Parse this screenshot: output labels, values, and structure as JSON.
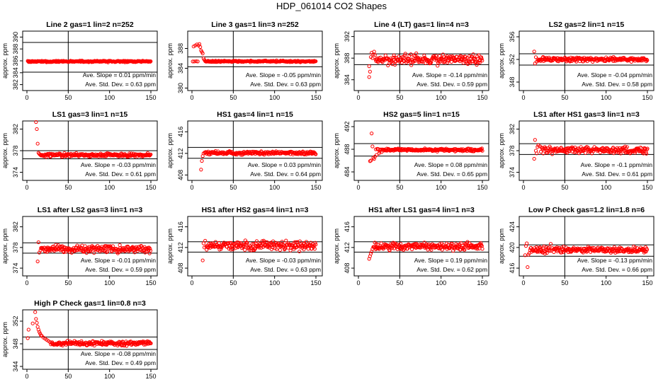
{
  "figure": {
    "title": "HDP_061014  CO2 Shapes",
    "point_color": "#ff0000",
    "axis_color": "#000000"
  },
  "chart_data": [
    {
      "type": "scatter",
      "title": "Line 2 gas=1 lin=2 n=252",
      "ylabel": "approx. ppm",
      "xlim": [
        0,
        150
      ],
      "ylim": [
        381,
        391
      ],
      "xticks": [
        0,
        50,
        100,
        150
      ],
      "yticks": [
        382,
        384,
        386,
        388,
        390
      ],
      "hlines": [
        389.1,
        384.1
      ],
      "vline": 50,
      "shape": {
        "start": 1,
        "base": 385.9,
        "noise": 0.06,
        "jump": 0
      },
      "annotations": [
        "Ave. Slope = 0.01 ppm/min",
        "Ave. Std. Dev. = 0.63 ppm"
      ]
    },
    {
      "type": "scatter",
      "title": "Line 3 gas=1 lin=3 n=252",
      "ylabel": "approx. ppm",
      "xlim": [
        0,
        150
      ],
      "ylim": [
        379.5,
        391.5
      ],
      "xticks": [
        0,
        50,
        100,
        150
      ],
      "yticks": [
        380,
        384,
        388
      ],
      "hlines": [
        386.3,
        384.3
      ],
      "vline": 50,
      "shape": {
        "start": 1,
        "base": 385.4,
        "noise": 0.07,
        "jump": 0,
        "early": [
          [
            2,
            388.4
          ],
          [
            4,
            388.6
          ],
          [
            6,
            388.8
          ],
          [
            8,
            388.6
          ],
          [
            9,
            388.9
          ],
          [
            10,
            388.3
          ],
          [
            11,
            387.6
          ],
          [
            12,
            387.3
          ],
          [
            13,
            387.0
          ],
          [
            14,
            386.0
          ],
          [
            15,
            385.7
          ]
        ]
      },
      "annotations": [
        "Ave. Slope = -0.05 ppm/min",
        "Ave. Std. Dev. = 0.63 ppm"
      ]
    },
    {
      "type": "scatter",
      "title": "Line 4 (LT) gas=1 lin=4 n=3",
      "ylabel": "approx. ppm",
      "xlim": [
        0,
        150
      ],
      "ylim": [
        382,
        393
      ],
      "xticks": [
        0,
        50,
        100,
        150
      ],
      "yticks": [
        384,
        388,
        392
      ],
      "hlines": [
        388.8,
        386.8
      ],
      "vline": 50,
      "shape": {
        "start": 13,
        "base": 387.8,
        "noise": 0.45,
        "jump": 0,
        "early": [
          [
            13,
            384.5
          ],
          [
            13,
            386.5
          ],
          [
            14,
            385.5
          ],
          [
            15,
            388.2
          ],
          [
            16,
            389.0
          ],
          [
            17,
            388.0
          ],
          [
            18,
            388.7
          ],
          [
            19,
            389.2
          ],
          [
            20,
            388.6
          ]
        ]
      },
      "annotations": [
        "Ave. Slope = -0.14 ppm/min",
        "Ave. Std. Dev. = 0.59 ppm"
      ]
    },
    {
      "type": "scatter",
      "title": "LS2 gas=2 lin=1 n=15",
      "ylabel": "approx. ppm",
      "xlim": [
        0,
        150
      ],
      "ylim": [
        346.5,
        357
      ],
      "xticks": [
        0,
        50,
        100,
        150
      ],
      "yticks": [
        348,
        352,
        356
      ],
      "hlines": [
        353.0,
        351.0
      ],
      "vline": 50,
      "shape": {
        "start": 13,
        "base": 352.0,
        "noise": 0.18,
        "jump": 0,
        "early": [
          [
            13,
            353.4
          ],
          [
            14,
            351.3
          ],
          [
            15,
            352.4
          ],
          [
            16,
            351.6
          ]
        ]
      },
      "annotations": [
        "Ave. Slope = -0.04 ppm/min",
        "Ave. Std. Dev. = 0.58 ppm"
      ]
    },
    {
      "type": "scatter",
      "title": "LS1 gas=3 lin=1 n=15",
      "ylabel": "approx. ppm",
      "xlim": [
        0,
        150
      ],
      "ylim": [
        372.5,
        383.5
      ],
      "xticks": [
        0,
        50,
        100,
        150
      ],
      "yticks": [
        374,
        378,
        382
      ],
      "hlines": [
        378.0,
        376.5
      ],
      "vline": 50,
      "shape": {
        "start": 13,
        "base": 377.2,
        "noise": 0.15,
        "jump": 0,
        "early": [
          [
            11,
            383.3
          ],
          [
            12,
            382.0
          ],
          [
            13,
            379.3
          ],
          [
            14,
            377.6
          ],
          [
            15,
            377.4
          ]
        ]
      },
      "annotations": [
        "Ave. Slope = -0.03 ppm/min",
        "Ave. Std. Dev. = 0.61 ppm"
      ]
    },
    {
      "type": "scatter",
      "title": "HS1 gas=4 lin=1 n=15",
      "ylabel": "approx. ppm",
      "xlim": [
        0,
        150
      ],
      "ylim": [
        407,
        418
      ],
      "xticks": [
        0,
        50,
        100,
        150
      ],
      "yticks": [
        408,
        412,
        416
      ],
      "hlines": [
        413.1,
        411.1
      ],
      "vline": 50,
      "shape": {
        "start": 13,
        "base": 412.1,
        "noise": 0.15,
        "jump": 0,
        "early": [
          [
            11,
            409.0
          ],
          [
            12,
            410.6
          ],
          [
            13,
            411.5
          ],
          [
            14,
            412.0
          ]
        ]
      },
      "annotations": [
        "Ave. Slope = 0.03 ppm/min",
        "Ave. Std. Dev. = 0.64 ppm"
      ]
    },
    {
      "type": "scatter",
      "title": "HS2 gas=5 lin=1 n=15",
      "ylabel": "approx. ppm",
      "xlim": [
        0,
        150
      ],
      "ylim": [
        482.5,
        493
      ],
      "xticks": [
        0,
        50,
        100,
        150
      ],
      "yticks": [
        484,
        488,
        492
      ],
      "hlines": [
        489.0,
        486.8
      ],
      "vline": 50,
      "shape": {
        "start": 18,
        "base": 487.9,
        "noise": 0.12,
        "jump": 0,
        "early": [
          [
            14,
            485.9
          ],
          [
            15,
            486.0
          ],
          [
            16,
            490.8
          ],
          [
            17,
            488.5
          ],
          [
            18,
            486.5
          ],
          [
            19,
            486.3
          ],
          [
            20,
            486.7
          ],
          [
            22,
            487.0
          ],
          [
            25,
            487.3
          ],
          [
            28,
            487.5
          ]
        ]
      },
      "annotations": [
        "Ave. Slope = 0.08 ppm/min",
        "Ave. Std. Dev. = 0.65 ppm"
      ]
    },
    {
      "type": "scatter",
      "title": "LS1 after HS1 gas=3 lin=1 n=3",
      "ylabel": "approx. ppm",
      "xlim": [
        0,
        150
      ],
      "ylim": [
        372.5,
        383.5
      ],
      "xticks": [
        0,
        50,
        100,
        150
      ],
      "yticks": [
        374,
        378,
        382
      ],
      "hlines": [
        379.3,
        377.3
      ],
      "vline": 50,
      "shape": {
        "start": 18,
        "base": 378.1,
        "noise": 0.3,
        "jump": 0,
        "early": [
          [
            13,
            376.5
          ],
          [
            14,
            380.0
          ],
          [
            15,
            378.0
          ],
          [
            16,
            377.5
          ],
          [
            17,
            378.7
          ],
          [
            18,
            379.0
          ],
          [
            20,
            378.8
          ],
          [
            22,
            378.6
          ],
          [
            25,
            378.4
          ]
        ]
      },
      "annotations": [
        "Ave. Slope = -0.1 ppm/min",
        "Ave. Std. Dev. = 0.61 ppm"
      ]
    },
    {
      "type": "scatter",
      "title": "LS1 after LS2 gas=3 lin=1 n=3",
      "ylabel": "approx. ppm",
      "xlim": [
        0,
        150
      ],
      "ylim": [
        372.5,
        384
      ],
      "xticks": [
        0,
        50,
        100,
        150
      ],
      "yticks": [
        374,
        378,
        382
      ],
      "hlines": [
        378.9,
        376.9
      ],
      "vline": 50,
      "shape": {
        "start": 14,
        "base": 377.7,
        "noise": 0.35,
        "jump": 0,
        "early": [
          [
            13,
            375.3
          ],
          [
            14,
            379.0
          ],
          [
            15,
            377.0
          ]
        ]
      },
      "annotations": [
        "Ave. Slope = -0.01 ppm/min",
        "Ave. Std. Dev. = 0.59 ppm"
      ]
    },
    {
      "type": "scatter",
      "title": "HS1 after HS2 gas=4 lin=1 n=3",
      "ylabel": "approx. ppm",
      "xlim": [
        0,
        150
      ],
      "ylim": [
        406.5,
        418
      ],
      "xticks": [
        0,
        50,
        100,
        150
      ],
      "yticks": [
        408,
        412,
        416
      ],
      "hlines": [
        413.1,
        411.1
      ],
      "vline": 50,
      "shape": {
        "start": 13,
        "base": 412.4,
        "noise": 0.45,
        "jump": 0,
        "early": [
          [
            13,
            409.5
          ],
          [
            14,
            412.8
          ],
          [
            15,
            412.0
          ],
          [
            16,
            413.3
          ]
        ]
      },
      "annotations": [
        "Ave. Slope = -0.03 ppm/min",
        "Ave. Std. Dev. = 0.63 ppm"
      ]
    },
    {
      "type": "scatter",
      "title": "HS1 after LS1 gas=4 lin=1 n=3",
      "ylabel": "approx. ppm",
      "xlim": [
        0,
        150
      ],
      "ylim": [
        406.5,
        418
      ],
      "xticks": [
        0,
        50,
        100,
        150
      ],
      "yticks": [
        408,
        412,
        416
      ],
      "hlines": [
        413.1,
        411.1
      ],
      "vline": 50,
      "shape": {
        "start": 18,
        "base": 412.2,
        "noise": 0.35,
        "jump": 0,
        "early": [
          [
            13,
            409.8
          ],
          [
            14,
            410.3
          ],
          [
            15,
            410.8
          ],
          [
            16,
            411.2
          ],
          [
            17,
            411.7
          ]
        ]
      },
      "annotations": [
        "Ave. Slope = 0.19 ppm/min",
        "Ave. Std. Dev. = 0.62 ppm"
      ]
    },
    {
      "type": "scatter",
      "title": "Low P Check gas=1.2 lin=1.8 n=6",
      "ylabel": "approx. ppm",
      "xlim": [
        0,
        150
      ],
      "ylim": [
        414.5,
        426
      ],
      "xticks": [
        0,
        50,
        100,
        150
      ],
      "yticks": [
        416,
        420,
        424
      ],
      "hlines": [
        420.5,
        418.3
      ],
      "vline": 50,
      "shape": {
        "start": 8,
        "base": 419.5,
        "noise": 0.3,
        "jump": 0,
        "early": [
          [
            2,
            418.5
          ],
          [
            3,
            420.3
          ],
          [
            4,
            420.8
          ],
          [
            5,
            416.2
          ],
          [
            6,
            418.6
          ],
          [
            7,
            418.9
          ],
          [
            33,
            420.7
          ],
          [
            35,
            419.9
          ]
        ]
      },
      "annotations": [
        "Ave. Slope = -0.13 ppm/min",
        "Ave. Std. Dev. = 0.66 ppm"
      ]
    },
    {
      "type": "scatter",
      "title": "High P Check gas=1 lin=0.8 n=3",
      "ylabel": "approx. ppm",
      "xlim": [
        0,
        150
      ],
      "ylim": [
        343.5,
        354
      ],
      "xticks": [
        0,
        50,
        100,
        150
      ],
      "yticks": [
        344,
        348,
        352
      ],
      "hlines": [
        349.2,
        347.0
      ],
      "vline": 50,
      "shape": {
        "start": 30,
        "base": 348.1,
        "noise": 0.2,
        "jump": 0,
        "early": [
          [
            1,
            349.0
          ],
          [
            2,
            350.5
          ],
          [
            7,
            351.6
          ],
          [
            10,
            353.6
          ],
          [
            11,
            352.4
          ],
          [
            12,
            351.7
          ],
          [
            13,
            351.0
          ],
          [
            14,
            350.5
          ],
          [
            15,
            350.1
          ],
          [
            16,
            349.8
          ],
          [
            17,
            349.5
          ],
          [
            18,
            349.4
          ],
          [
            20,
            349.1
          ],
          [
            22,
            348.9
          ],
          [
            24,
            348.7
          ],
          [
            26,
            348.5
          ],
          [
            28,
            348.3
          ],
          [
            29,
            347.9
          ]
        ]
      },
      "annotations": [
        "Ave. Slope = -0.08 ppm/min",
        "Ave. Std. Dev. = 0.49 ppm"
      ]
    }
  ]
}
